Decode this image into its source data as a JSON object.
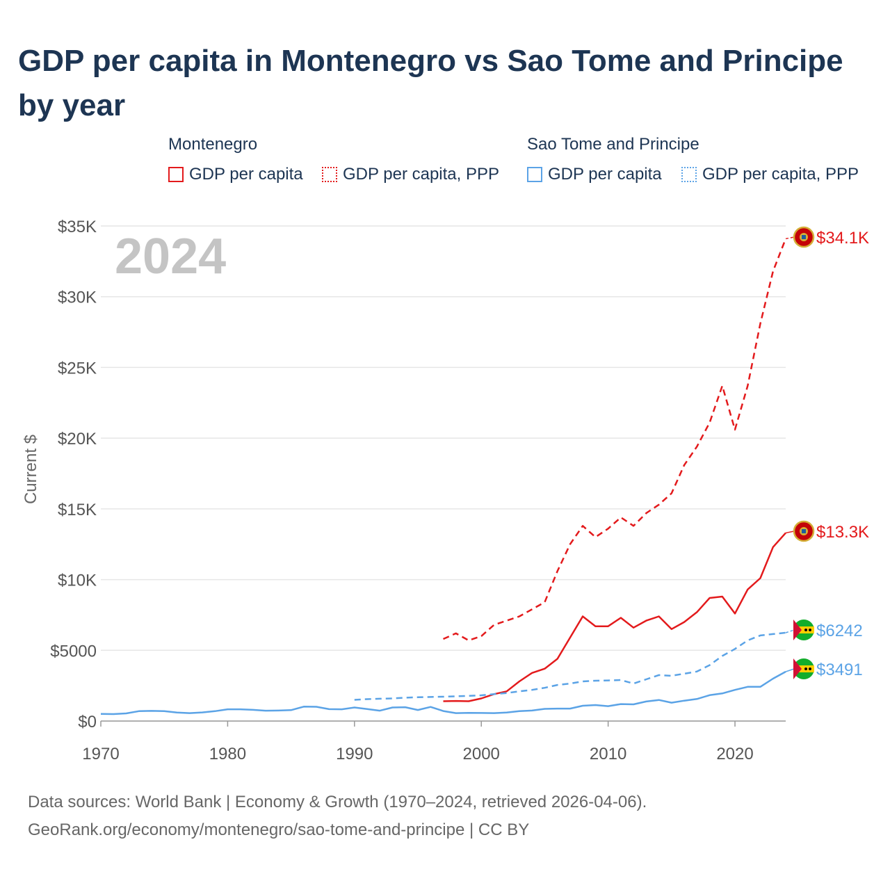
{
  "title": "GDP per capita in Montenegro vs Sao Tome and Principe by year",
  "legend": {
    "groups": [
      {
        "name": "Montenegro",
        "items": [
          "GDP per capita",
          "GDP per capita, PPP"
        ]
      },
      {
        "name": "Sao Tome and Principe",
        "items": [
          "GDP per capita",
          "GDP per capita, PPP"
        ]
      }
    ]
  },
  "year_watermark": "2024",
  "footer": {
    "line1": "Data sources: World Bank | Economy & Growth (1970–2024, retrieved 2026-04-06).",
    "line2": "GeoRank.org/economy/montenegro/sao-tome-and-principe | CC BY"
  },
  "colors": {
    "montenegro": "#e31a1c",
    "sao_tome": "#5ba3e6",
    "grid": "#e6e6e6",
    "axis_text": "#555555"
  },
  "chart_data": {
    "type": "line",
    "title": "GDP per capita in Montenegro vs Sao Tome and Principe by year",
    "xlabel": "",
    "ylabel": "Current $",
    "xlim": [
      1970,
      2024
    ],
    "ylim": [
      0,
      35000
    ],
    "xticks": [
      1970,
      1980,
      1990,
      2000,
      2010,
      2020
    ],
    "xtick_labels": [
      "1970",
      "1980",
      "1990",
      "2000",
      "2010",
      "2020"
    ],
    "yticks": [
      0,
      5000,
      10000,
      15000,
      20000,
      25000,
      30000,
      35000
    ],
    "ytick_labels": [
      "$0",
      "$5000",
      "$10K",
      "$15K",
      "$20K",
      "$25K",
      "$30K",
      "$35K"
    ],
    "grid": true,
    "series": [
      {
        "name": "Montenegro GDP per capita, PPP",
        "country": "Montenegro",
        "color": "#e31a1c",
        "style": "dashed",
        "end_label": "$34.1K",
        "x": [
          1997,
          1998,
          1999,
          2000,
          2001,
          2002,
          2003,
          2004,
          2005,
          2006,
          2007,
          2008,
          2009,
          2010,
          2011,
          2012,
          2013,
          2014,
          2015,
          2016,
          2017,
          2018,
          2019,
          2020,
          2021,
          2022,
          2023,
          2024
        ],
        "y": [
          5800,
          6200,
          5700,
          6000,
          6800,
          7100,
          7400,
          7900,
          8400,
          10600,
          12500,
          13800,
          13000,
          13600,
          14400,
          13800,
          14700,
          15300,
          16100,
          18100,
          19400,
          21100,
          23700,
          20600,
          23700,
          28100,
          31800,
          34100
        ]
      },
      {
        "name": "Montenegro GDP per capita",
        "country": "Montenegro",
        "color": "#e31a1c",
        "style": "solid",
        "end_label": "$13.3K",
        "x": [
          1997,
          1998,
          1999,
          2000,
          2001,
          2002,
          2003,
          2004,
          2005,
          2006,
          2007,
          2008,
          2009,
          2010,
          2011,
          2012,
          2013,
          2014,
          2015,
          2016,
          2017,
          2018,
          2019,
          2020,
          2021,
          2022,
          2023,
          2024
        ],
        "y": [
          1400,
          1420,
          1400,
          1600,
          1900,
          2100,
          2800,
          3400,
          3700,
          4400,
          5900,
          7400,
          6700,
          6700,
          7300,
          6600,
          7100,
          7400,
          6500,
          7000,
          7700,
          8700,
          8800,
          7600,
          9300,
          10100,
          12300,
          13300
        ]
      },
      {
        "name": "Sao Tome and Principe GDP per capita, PPP",
        "country": "Sao Tome and Principe",
        "color": "#5ba3e6",
        "style": "dashed",
        "end_label": "$6242",
        "x": [
          1990,
          1991,
          1992,
          1993,
          1994,
          1995,
          1996,
          1997,
          1998,
          1999,
          2000,
          2001,
          2002,
          2003,
          2004,
          2005,
          2006,
          2007,
          2008,
          2009,
          2010,
          2011,
          2012,
          2013,
          2014,
          2015,
          2016,
          2017,
          2018,
          2019,
          2020,
          2021,
          2022,
          2023,
          2024
        ],
        "y": [
          1500,
          1550,
          1580,
          1600,
          1650,
          1680,
          1700,
          1720,
          1750,
          1780,
          1820,
          1900,
          1980,
          2100,
          2200,
          2350,
          2550,
          2650,
          2800,
          2850,
          2870,
          2900,
          2650,
          2950,
          3250,
          3200,
          3350,
          3500,
          3950,
          4600,
          5100,
          5700,
          6050,
          6150,
          6242
        ]
      },
      {
        "name": "Sao Tome and Principe GDP per capita",
        "country": "Sao Tome and Principe",
        "color": "#5ba3e6",
        "style": "solid",
        "end_label": "$3491",
        "x": [
          1970,
          1971,
          1972,
          1973,
          1974,
          1975,
          1976,
          1977,
          1978,
          1979,
          1980,
          1981,
          1982,
          1983,
          1984,
          1985,
          1986,
          1987,
          1988,
          1989,
          1990,
          1991,
          1992,
          1993,
          1994,
          1995,
          1996,
          1997,
          1998,
          1999,
          2000,
          2001,
          2002,
          2003,
          2004,
          2005,
          2006,
          2007,
          2008,
          2009,
          2010,
          2011,
          2012,
          2013,
          2014,
          2015,
          2016,
          2017,
          2018,
          2019,
          2020,
          2021,
          2022,
          2023,
          2024
        ],
        "y": [
          500,
          490,
          540,
          700,
          720,
          700,
          600,
          560,
          610,
          700,
          830,
          830,
          790,
          730,
          740,
          770,
          1020,
          1010,
          840,
          830,
          960,
          850,
          730,
          960,
          980,
          780,
          1000,
          710,
          560,
          580,
          570,
          560,
          600,
          700,
          740,
          860,
          880,
          880,
          1080,
          1130,
          1050,
          1200,
          1180,
          1380,
          1490,
          1300,
          1440,
          1560,
          1830,
          1950,
          2200,
          2420,
          2420,
          3000,
          3491
        ]
      }
    ]
  }
}
